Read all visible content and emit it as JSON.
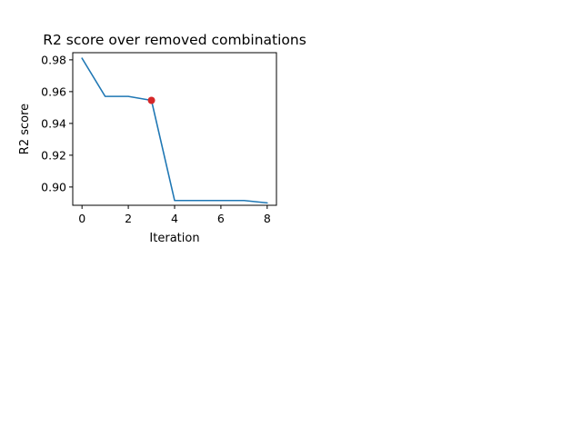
{
  "chart_data": {
    "type": "line",
    "title": "R2 score over removed combinations",
    "xlabel": "Iteration",
    "ylabel": "R2 score",
    "xlim": [
      -0.4,
      8.4
    ],
    "ylim": [
      0.8885,
      0.9845
    ],
    "xticks": [
      0,
      2,
      4,
      6,
      8
    ],
    "yticks": [
      0.9,
      0.92,
      0.94,
      0.96,
      0.98
    ],
    "grid": false,
    "series": [
      {
        "color": "#1f77b4",
        "x": [
          0,
          1,
          2,
          3,
          4,
          5,
          6,
          7,
          8
        ],
        "y": [
          0.981,
          0.957,
          0.957,
          0.9545,
          0.8915,
          0.8915,
          0.8915,
          0.8915,
          0.89
        ]
      }
    ],
    "highlight_point": {
      "x": 3,
      "y": 0.9545,
      "color": "#d62728"
    }
  }
}
